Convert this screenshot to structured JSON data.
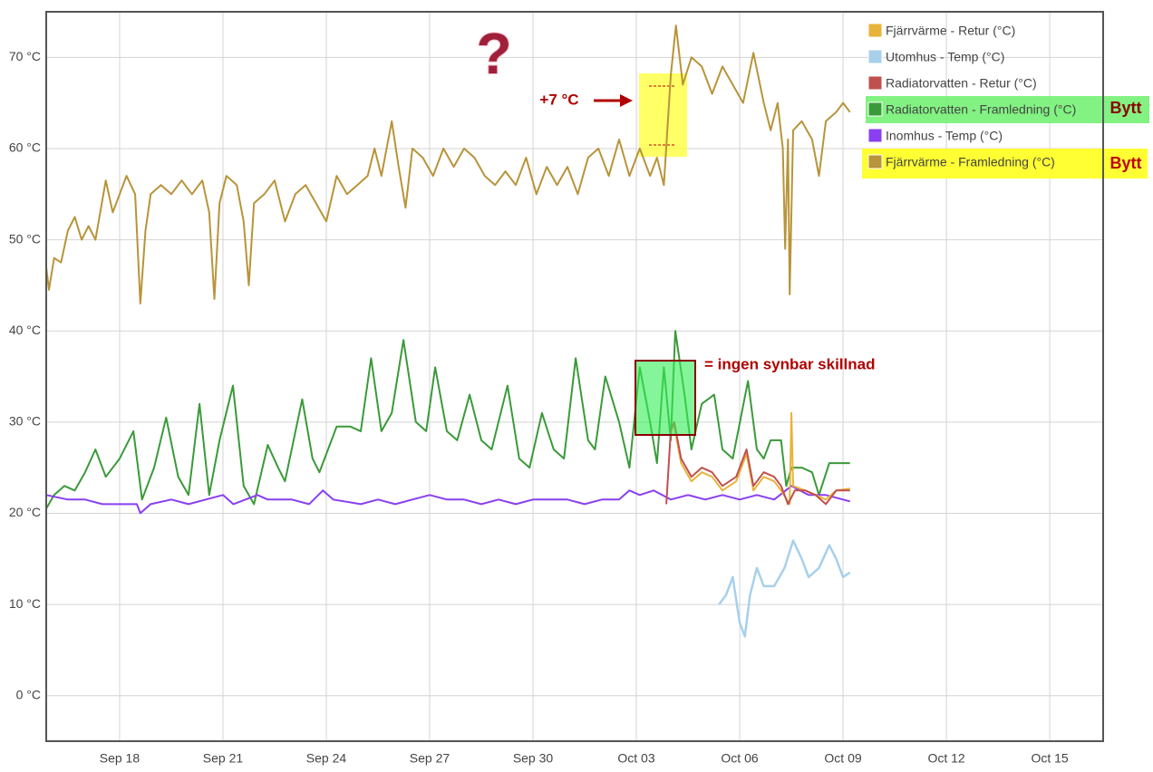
{
  "chart_data": {
    "type": "line",
    "xlim": [
      15.87,
      46.55
    ],
    "xticks": [
      {
        "value": 18,
        "label": "Sep 18"
      },
      {
        "value": 21,
        "label": "Sep 21"
      },
      {
        "value": 24,
        "label": "Sep 24"
      },
      {
        "value": 27,
        "label": "Sep 27"
      },
      {
        "value": 30,
        "label": "Sep 30"
      },
      {
        "value": 33,
        "label": "Oct 03"
      },
      {
        "value": 36,
        "label": "Oct 06"
      },
      {
        "value": 39,
        "label": "Oct 09"
      },
      {
        "value": 42,
        "label": "Oct 12"
      },
      {
        "value": 45,
        "label": "Oct 15"
      }
    ],
    "ylim": [
      -5,
      75
    ],
    "yticks": [
      {
        "value": 0,
        "label": "0 °C"
      },
      {
        "value": 10,
        "label": "10 °C"
      },
      {
        "value": 20,
        "label": "20 °C"
      },
      {
        "value": 30,
        "label": "30 °C"
      },
      {
        "value": 40,
        "label": "40 °C"
      },
      {
        "value": 50,
        "label": "50 °C"
      },
      {
        "value": 60,
        "label": "60 °C"
      },
      {
        "value": 70,
        "label": "70 °C"
      }
    ],
    "grid": true,
    "legend": "top-right",
    "series": [
      {
        "name": "Fjärrvärme - Retur (°C)",
        "color": "#e8b33a",
        "x": [
          34.1,
          34.3,
          34.6,
          34.9,
          35.2,
          35.5,
          35.9,
          36.2,
          36.4,
          36.7,
          37.0,
          37.2,
          37.45,
          37.5,
          37.55,
          37.9,
          38.2,
          38.5,
          38.8,
          39.2
        ],
        "values": [
          29.5,
          25.5,
          23.5,
          24.5,
          24,
          22.5,
          23.5,
          26.5,
          22.5,
          24,
          23.5,
          22.5,
          21,
          31,
          23,
          22.5,
          22,
          21.5,
          22.5,
          22.7
        ]
      },
      {
        "name": "Utomhus - Temp (°C)",
        "color": "#a8d0ea",
        "x": [
          35.4,
          35.6,
          35.8,
          36.0,
          36.15,
          36.3,
          36.5,
          36.7,
          37.0,
          37.3,
          37.55,
          37.8,
          38.0,
          38.3,
          38.6,
          38.8,
          39.0,
          39.2
        ],
        "values": [
          10,
          11,
          13,
          8,
          6.5,
          11,
          14,
          12,
          12,
          14,
          17,
          15,
          13,
          14,
          16.5,
          15,
          13,
          13.5
        ]
      },
      {
        "name": "Radiatorvatten - Retur (°C)",
        "color": "#c0504d",
        "x": [
          33.87,
          34.0,
          34.1,
          34.3,
          34.6,
          34.9,
          35.2,
          35.5,
          35.9,
          36.2,
          36.4,
          36.7,
          37.0,
          37.2,
          37.4,
          37.6,
          37.9,
          38.2,
          38.5,
          38.8,
          39.2
        ],
        "values": [
          21,
          29,
          30,
          26,
          24,
          25,
          24.5,
          23,
          24,
          27,
          23,
          24.5,
          24,
          23,
          21,
          22.5,
          22.5,
          22,
          21,
          22.5,
          22.5
        ]
      },
      {
        "name": "Radiatorvatten - Framledning (°C)",
        "color": "#3a9a3a",
        "x": [
          15.87,
          16.1,
          16.4,
          16.7,
          17.0,
          17.3,
          17.6,
          18.0,
          18.4,
          18.65,
          19.0,
          19.35,
          19.7,
          20.0,
          20.32,
          20.6,
          20.9,
          21.29,
          21.6,
          21.9,
          22.3,
          22.6,
          22.8,
          23.3,
          23.6,
          23.8,
          24.3,
          24.7,
          25.0,
          25.3,
          25.6,
          25.9,
          26.24,
          26.6,
          26.9,
          27.16,
          27.5,
          27.8,
          28.16,
          28.5,
          28.8,
          29.26,
          29.6,
          29.9,
          30.26,
          30.6,
          30.9,
          31.24,
          31.6,
          31.8,
          32.1,
          32.5,
          32.8,
          33.1,
          33.4,
          33.6,
          33.8,
          34.0,
          34.13,
          34.4,
          34.6,
          34.9,
          35.26,
          35.5,
          35.8,
          36.24,
          36.5,
          36.7,
          36.9,
          37.2,
          37.35,
          37.5,
          37.8,
          38.1,
          38.3,
          38.6,
          38.9,
          39.2
        ],
        "values": [
          20.5,
          22,
          23,
          22.5,
          24.5,
          27,
          24,
          26,
          29,
          21.5,
          25,
          30.5,
          24,
          22,
          32,
          22,
          28,
          34,
          23,
          21,
          27.5,
          25,
          23.5,
          32.5,
          26,
          24.5,
          29.5,
          29.5,
          29,
          37,
          29,
          31,
          39,
          30,
          29,
          36,
          29,
          28,
          33,
          28,
          27,
          34,
          26,
          25,
          31,
          27,
          26,
          37,
          28,
          27,
          35,
          30,
          25,
          36,
          30,
          25.5,
          36,
          28,
          40,
          33,
          27,
          32,
          33,
          27,
          26,
          34.5,
          27,
          26,
          28,
          28,
          23,
          25,
          25,
          24.5,
          22,
          25.5,
          25.5,
          25.5
        ]
      },
      {
        "name": "Inomhus - Temp (°C)",
        "color": "#8a3ff0",
        "x": [
          15.87,
          16.5,
          17.0,
          17.5,
          18.0,
          18.5,
          18.6,
          18.9,
          19.5,
          20.0,
          20.5,
          21.0,
          21.3,
          22.0,
          22.3,
          23.0,
          23.5,
          23.9,
          24.2,
          25.0,
          25.5,
          26.0,
          26.5,
          27.0,
          27.5,
          28.0,
          28.5,
          29.0,
          29.5,
          30.0,
          30.5,
          31.0,
          31.5,
          32.0,
          32.5,
          32.8,
          33.1,
          33.5,
          34.0,
          34.5,
          35.0,
          35.5,
          36.0,
          36.5,
          37.0,
          37.5,
          38.0,
          38.5,
          39.0,
          39.2
        ],
        "values": [
          22,
          21.5,
          21.5,
          21,
          21,
          21,
          20,
          21,
          21.5,
          21,
          21.5,
          22,
          21,
          22,
          21.5,
          21.5,
          21,
          22.5,
          21.5,
          21,
          21.5,
          21,
          21.5,
          22,
          21.5,
          21.5,
          21,
          21.5,
          21,
          21.5,
          21.5,
          21.5,
          21,
          21.5,
          21.5,
          22.5,
          22,
          22.5,
          21.5,
          22,
          21.5,
          22,
          21.5,
          22,
          21.5,
          23,
          22,
          22,
          21.5,
          21.3
        ]
      },
      {
        "name": "Fjärrvärme - Framledning (°C)",
        "color": "#b8943a",
        "x": [
          15.87,
          15.95,
          16.1,
          16.3,
          16.5,
          16.7,
          16.9,
          17.1,
          17.3,
          17.6,
          17.8,
          18.0,
          18.2,
          18.45,
          18.6,
          18.75,
          18.9,
          19.2,
          19.5,
          19.8,
          20.1,
          20.4,
          20.6,
          20.75,
          20.9,
          21.1,
          21.4,
          21.6,
          21.75,
          21.9,
          22.2,
          22.5,
          22.8,
          23.1,
          23.4,
          23.7,
          24.0,
          24.3,
          24.6,
          24.9,
          25.2,
          25.4,
          25.6,
          25.9,
          26.1,
          26.3,
          26.5,
          26.8,
          27.1,
          27.4,
          27.7,
          28.0,
          28.3,
          28.6,
          28.9,
          29.2,
          29.5,
          29.8,
          30.1,
          30.4,
          30.7,
          31.0,
          31.3,
          31.6,
          31.9,
          32.2,
          32.5,
          32.8,
          33.1,
          33.4,
          33.6,
          33.8,
          34.0,
          34.15,
          34.35,
          34.6,
          34.9,
          35.2,
          35.5,
          35.8,
          36.1,
          36.4,
          36.7,
          36.9,
          37.1,
          37.25,
          37.32,
          37.4,
          37.45,
          37.55,
          37.8,
          38.1,
          38.3,
          38.5,
          38.8,
          39.0,
          39.2
        ],
        "values": [
          47,
          44.5,
          48,
          47.5,
          51,
          52.5,
          50,
          51.5,
          50,
          56.5,
          53,
          55,
          57,
          55,
          43,
          51,
          55,
          56,
          55,
          56.5,
          55,
          56.5,
          53,
          43.5,
          54,
          57,
          56,
          52,
          45,
          54,
          55,
          56.5,
          52,
          55,
          56,
          54,
          52,
          57,
          55,
          56,
          57,
          60,
          57,
          63,
          58,
          53.5,
          60,
          59,
          57,
          60,
          58,
          60,
          59,
          57,
          56,
          57.5,
          56,
          59,
          55,
          58,
          56,
          58,
          55,
          59,
          60,
          57,
          61,
          57,
          60,
          57,
          59,
          56,
          68,
          73.5,
          67,
          70,
          69,
          66,
          69,
          67,
          65,
          70.5,
          65,
          62,
          65,
          60,
          49,
          61,
          44,
          62,
          63,
          61,
          57,
          63,
          64,
          65,
          64
        ]
      }
    ],
    "annotations": [
      "?",
      "+7 °C",
      "= ingen synbar skillnad",
      "Bytt",
      "Bytt"
    ]
  }
}
